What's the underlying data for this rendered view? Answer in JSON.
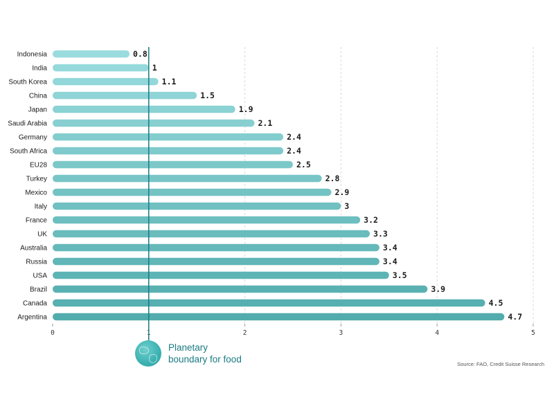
{
  "chart_data": {
    "type": "bar",
    "orientation": "horizontal",
    "categories": [
      "Indonesia",
      "India",
      "South Korea",
      "China",
      "Japan",
      "Saudi Arabia",
      "Germany",
      "South Africa",
      "EU28",
      "Turkey",
      "Mexico",
      "Italy",
      "France",
      "UK",
      "Australia",
      "Russia",
      "USA",
      "Brazil",
      "Canada",
      "Argentina"
    ],
    "values": [
      0.8,
      1,
      1.1,
      1.5,
      1.9,
      2.1,
      2.4,
      2.4,
      2.5,
      2.8,
      2.9,
      3,
      3.2,
      3.3,
      3.4,
      3.4,
      3.5,
      3.9,
      4.5,
      4.7
    ],
    "value_labels": [
      "0.8",
      "1",
      "1.1",
      "1.5",
      "1.9",
      "2.1",
      "2.4",
      "2.4",
      "2.5",
      "2.8",
      "2.9",
      "3",
      "3.2",
      "3.3",
      "3.4",
      "3.4",
      "3.5",
      "3.9",
      "4.5",
      "4.7"
    ],
    "xlim": [
      0,
      5
    ],
    "xticks": [
      "0",
      "1",
      "2",
      "3",
      "4",
      "5"
    ],
    "reference_line": 1,
    "grid": "vertical-dashed",
    "bar_color_light": "#9adcde",
    "bar_color_dark": "#52acad",
    "reference_line_color": "#1a7a82"
  },
  "legend": {
    "line1": "Planetary",
    "line2": "boundary for food",
    "icon": "globe-icon"
  },
  "source": "Source: FAO, Credit Suisse Research"
}
